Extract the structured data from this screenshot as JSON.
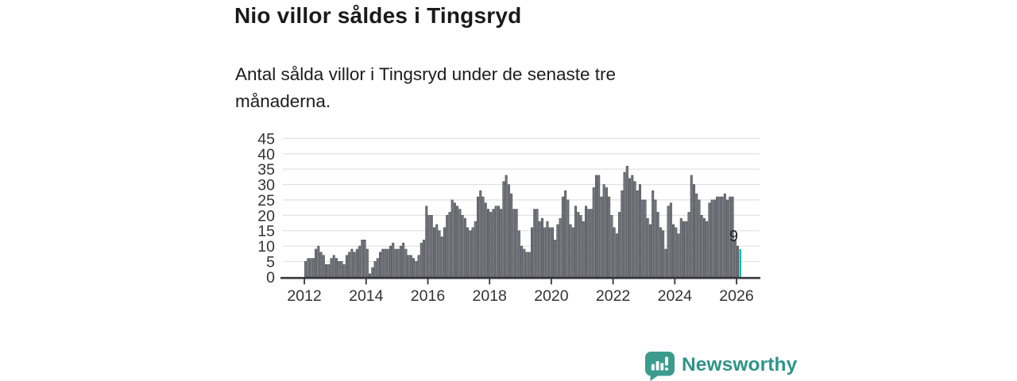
{
  "header": {
    "title": "Nio villor såldes i Tingsryd",
    "subtitle": "Antal sålda villor i Tingsryd under de senaste tre månaderna."
  },
  "chart_data": {
    "type": "bar",
    "title": "Nio villor såldes i Tingsryd",
    "xlabel": "",
    "ylabel": "",
    "x_start_year": 2012,
    "bars_per_year": 12,
    "x_tick_labels": [
      "2012",
      "2014",
      "2016",
      "2018",
      "2020",
      "2022",
      "2024",
      "2026"
    ],
    "y_ticks": [
      0,
      5,
      10,
      15,
      20,
      25,
      30,
      35,
      40,
      45
    ],
    "ylim": [
      0,
      45
    ],
    "grid": true,
    "bar_color": "#75757e",
    "bar_stroke": "#43434b",
    "axis_color": "#35353b",
    "grid_color": "#e0e0e0",
    "tick_label_color": "#333333",
    "values": [
      5,
      6,
      6,
      6,
      9,
      10,
      8,
      7,
      4,
      4,
      6,
      7,
      6,
      5,
      5,
      4,
      7,
      8,
      9,
      8,
      9,
      10,
      12,
      12,
      9,
      1,
      3,
      5,
      6,
      8,
      9,
      9,
      9,
      10,
      11,
      9,
      9,
      10,
      11,
      9,
      7,
      7,
      6,
      5,
      7,
      11,
      12,
      23,
      20,
      20,
      16,
      17,
      15,
      13,
      16,
      20,
      21,
      25,
      24,
      23,
      22,
      20,
      19,
      16,
      15,
      16,
      18,
      26,
      28,
      26,
      24,
      22,
      21,
      22,
      23,
      23,
      22,
      31,
      33,
      30,
      27,
      22,
      22,
      15,
      10,
      9,
      8,
      8,
      16,
      22,
      22,
      18,
      19,
      16,
      18,
      16,
      16,
      12,
      17,
      19,
      26,
      28,
      25,
      17,
      16,
      23,
      21,
      20,
      18,
      23,
      22,
      22,
      29,
      33,
      33,
      26,
      30,
      29,
      26,
      20,
      16,
      14,
      21,
      28,
      34,
      36,
      32,
      33,
      31,
      28,
      30,
      25,
      25,
      19,
      17,
      28,
      25,
      21,
      16,
      15,
      9,
      23,
      24,
      17,
      16,
      14,
      19,
      18,
      18,
      21,
      33,
      30,
      27,
      25,
      20,
      19,
      18,
      24,
      25,
      25,
      26,
      26,
      26,
      27,
      25,
      26,
      26,
      12,
      10,
      9
    ],
    "highlight": {
      "index": 169,
      "value": 9,
      "label": "9",
      "color": "#10b5a7",
      "label_color": "#222222"
    }
  },
  "branding": {
    "logo_text": "Newsworthy",
    "logo_icon": "bar-chart-speech-bubble-icon",
    "logo_color": "#3b9c8e",
    "text_color": "#2e9488"
  }
}
